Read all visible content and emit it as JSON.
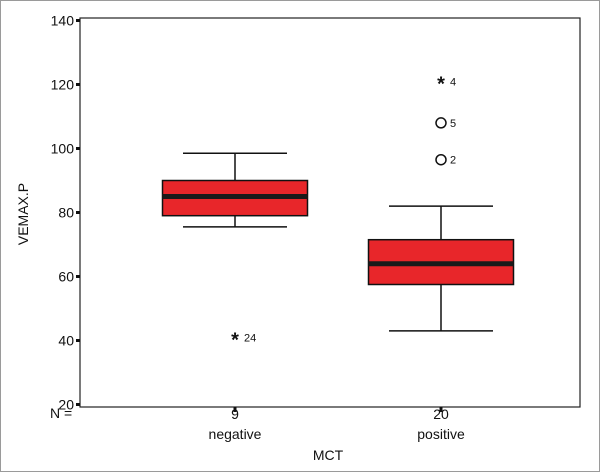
{
  "chart_data": {
    "type": "boxplot",
    "title": "",
    "xlabel": "MCT",
    "ylabel": "VEMAX.P",
    "ylim": [
      20,
      140
    ],
    "yticks": [
      20,
      40,
      60,
      80,
      100,
      120,
      140
    ],
    "n_label": "N =",
    "categories": [
      "negative",
      "positive"
    ],
    "n_values": [
      "9",
      "20"
    ],
    "box_color": "#e8262a",
    "boxes": [
      {
        "category": "negative",
        "n": 9,
        "whisker_low": 75.5,
        "q1": 79,
        "median": 85,
        "q3": 90,
        "whisker_high": 98.5
      },
      {
        "category": "positive",
        "n": 20,
        "whisker_low": 43,
        "q1": 57.5,
        "median": 64,
        "q3": 71.5,
        "whisker_high": 82
      }
    ],
    "outliers": [
      {
        "category": "negative",
        "value": 41,
        "label": "24",
        "marker": "extreme"
      },
      {
        "category": "positive",
        "value": 121,
        "label": "4",
        "marker": "extreme"
      },
      {
        "category": "positive",
        "value": 108,
        "label": "5",
        "marker": "circle"
      },
      {
        "category": "positive",
        "value": 96.5,
        "label": "2",
        "marker": "circle"
      }
    ]
  }
}
